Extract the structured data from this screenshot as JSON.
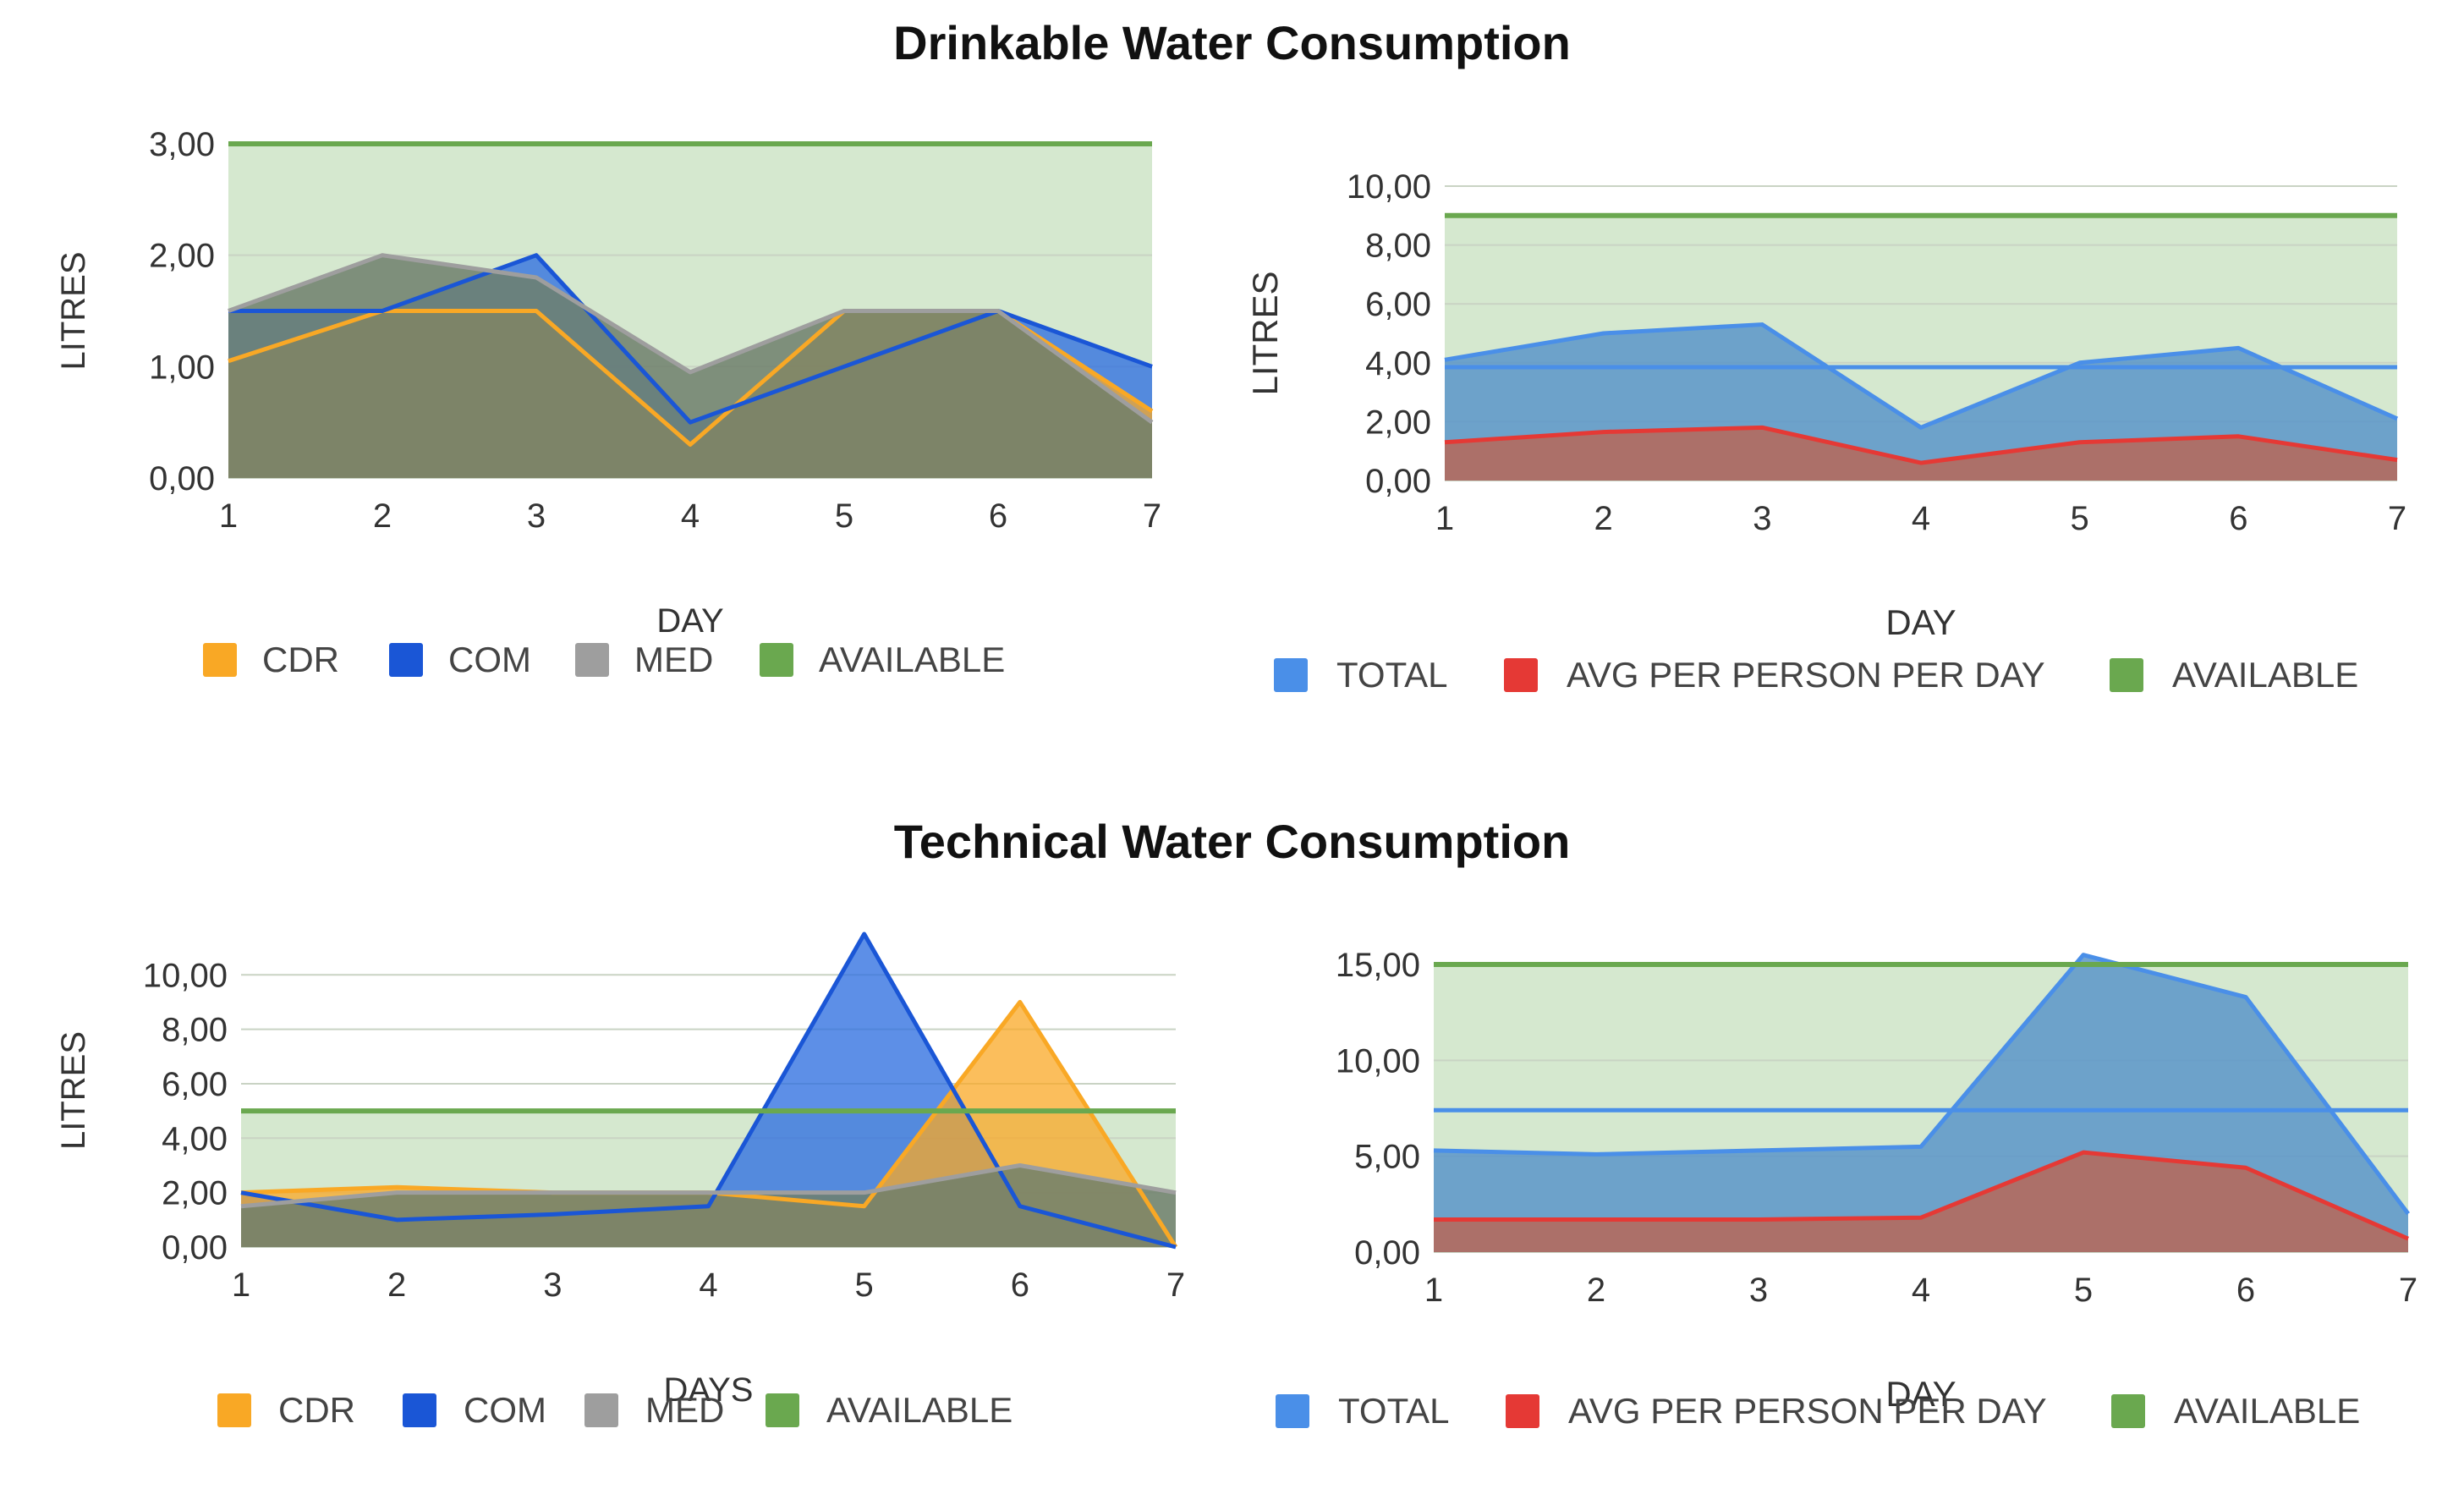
{
  "sections": {
    "top_title": "Drinkable Water Consumption",
    "bottom_title": "Technical Water Consumption"
  },
  "chart_data": [
    {
      "id": "drinkable-by-group",
      "type": "area",
      "title": "",
      "xlabel": "DAY",
      "ylabel": "LITRES",
      "x": [
        1,
        2,
        3,
        4,
        5,
        6,
        7
      ],
      "ylim": [
        0,
        3
      ],
      "yticks": [
        "0,00",
        "1,00",
        "2,00",
        "3,00"
      ],
      "grid": true,
      "legend_position": "bottom",
      "series": [
        {
          "name": "CDR",
          "color": "#f9a825",
          "values": [
            1.05,
            1.5,
            1.5,
            0.3,
            1.5,
            1.5,
            0.6
          ]
        },
        {
          "name": "COM",
          "color": "#1a56d6",
          "values": [
            1.5,
            1.5,
            2.0,
            0.5,
            1.0,
            1.5,
            1.0
          ]
        },
        {
          "name": "MED",
          "color": "#9e9e9e",
          "values": [
            1.5,
            2.0,
            1.8,
            0.95,
            1.5,
            1.5,
            0.5
          ]
        },
        {
          "name": "AVAILABLE",
          "color": "#6aa84f",
          "values": [
            3.0,
            3.0,
            3.0,
            3.0,
            3.0,
            3.0,
            3.0
          ]
        }
      ]
    },
    {
      "id": "drinkable-total",
      "type": "area",
      "title": "",
      "xlabel": "DAY",
      "ylabel": "LITRES",
      "x": [
        1,
        2,
        3,
        4,
        5,
        6,
        7
      ],
      "ylim": [
        0,
        10
      ],
      "yticks": [
        "0,00",
        "2,00",
        "4,00",
        "6,00",
        "8,00",
        "10,00"
      ],
      "grid": true,
      "legend_position": "bottom",
      "average_line": {
        "series": "TOTAL",
        "value": 3.85
      },
      "series": [
        {
          "name": "TOTAL",
          "color": "#4a8fe8",
          "values": [
            4.1,
            5.0,
            5.3,
            1.8,
            4.0,
            4.5,
            2.1
          ]
        },
        {
          "name": "AVG PER PERSON PER DAY",
          "color": "#e53935",
          "values": [
            1.3,
            1.65,
            1.8,
            0.6,
            1.3,
            1.5,
            0.7
          ]
        },
        {
          "name": "AVAILABLE",
          "color": "#6aa84f",
          "values": [
            9.0,
            9.0,
            9.0,
            9.0,
            9.0,
            9.0,
            9.0
          ]
        }
      ]
    },
    {
      "id": "technical-by-group",
      "type": "area",
      "title": "",
      "xlabel": "DAYS",
      "ylabel": "LITRES",
      "x": [
        1,
        2,
        3,
        4,
        5,
        6,
        7
      ],
      "ylim": [
        0,
        11.5
      ],
      "yticks": [
        "0,00",
        "2,00",
        "4,00",
        "6,00",
        "8,00",
        "10,00"
      ],
      "grid": true,
      "legend_position": "bottom",
      "series": [
        {
          "name": "CDR",
          "color": "#f9a825",
          "values": [
            2.0,
            2.2,
            2.0,
            2.0,
            1.5,
            9.0,
            0.0
          ]
        },
        {
          "name": "COM",
          "color": "#1a56d6",
          "values": [
            2.0,
            1.0,
            1.2,
            1.5,
            11.5,
            1.5,
            0.0
          ]
        },
        {
          "name": "MED",
          "color": "#9e9e9e",
          "values": [
            1.5,
            2.0,
            2.0,
            2.0,
            2.0,
            3.0,
            2.0
          ]
        },
        {
          "name": "AVAILABLE",
          "color": "#6aa84f",
          "values": [
            5.0,
            5.0,
            5.0,
            5.0,
            5.0,
            5.0,
            5.0
          ]
        }
      ]
    },
    {
      "id": "technical-total",
      "type": "area",
      "title": "",
      "xlabel": "DAY",
      "ylabel": "",
      "x": [
        1,
        2,
        3,
        4,
        5,
        6,
        7
      ],
      "ylim": [
        0,
        15
      ],
      "yticks": [
        "0,00",
        "5,00",
        "10,00",
        "15,00"
      ],
      "grid": true,
      "legend_position": "bottom",
      "average_line": {
        "series": "TOTAL",
        "value": 7.4
      },
      "series": [
        {
          "name": "TOTAL",
          "color": "#4a8fe8",
          "values": [
            5.3,
            5.1,
            5.3,
            5.5,
            15.5,
            13.3,
            2.0
          ]
        },
        {
          "name": "AVG PER PERSON PER DAY",
          "color": "#e53935",
          "values": [
            1.7,
            1.7,
            1.7,
            1.8,
            5.2,
            4.4,
            0.7
          ]
        },
        {
          "name": "AVAILABLE",
          "color": "#6aa84f",
          "values": [
            15.0,
            15.0,
            15.0,
            15.0,
            15.0,
            15.0,
            15.0
          ]
        }
      ]
    }
  ]
}
